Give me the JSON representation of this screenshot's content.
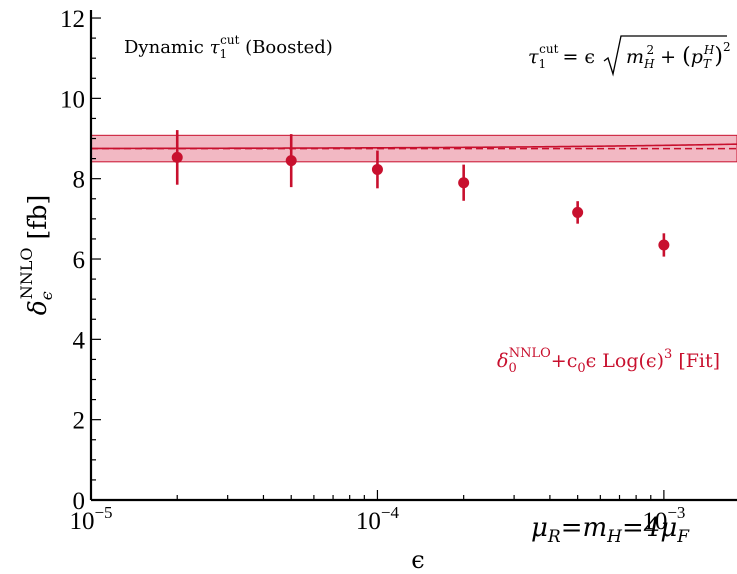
{
  "chart_data": {
    "type": "scatter",
    "title": "",
    "annotations": {
      "top_left_prefix": "Dynamic ",
      "top_left_tau": "τ",
      "top_left_tau_sub": "1",
      "top_left_tau_sup": "cut",
      "top_left_suffix": " (Boosted)",
      "formula_lhs_tau": "τ",
      "formula_lhs_sub": "1",
      "formula_lhs_sup": "cut",
      "formula_rhs_eps": "= ϵ",
      "formula_m": "m",
      "formula_m_sub": "H",
      "formula_m_sup": "2",
      "formula_plus": " + ",
      "formula_p": "p",
      "formula_p_sub": "T",
      "formula_p_sup": "H",
      "formula_outer_sup": "2",
      "fit_delta": "δ",
      "fit_delta_sub": "0",
      "fit_delta_sup": "NNLO",
      "fit_rest": "+c",
      "fit_c_sub": "0",
      "fit_tail": "ϵ Log(ϵ)",
      "fit_tail_sup": "3",
      "fit_bracket": " [Fit]",
      "scale_mu1": "μ",
      "scale_mu1_sub": "R",
      "scale_eq1": "=m",
      "scale_m_sub": "H",
      "scale_eq2": "=4μ",
      "scale_mu2_sub": "F"
    },
    "xlabel": "ϵ",
    "ylabel_delta": "δ",
    "ylabel_sub": "ϵ",
    "ylabel_sup": "NNLO",
    "ylabel_unit": " [fb]",
    "x_scale": "log",
    "xlim": [
      1e-05,
      0.0018
    ],
    "ylim": [
      0,
      12.2
    ],
    "x_ticks": [
      {
        "value": 1e-05,
        "base": "10",
        "exp": "−5"
      },
      {
        "value": 0.0001,
        "base": "10",
        "exp": "−4"
      },
      {
        "value": 0.001,
        "base": "10",
        "exp": "−3"
      }
    ],
    "y_ticks": [
      0,
      2,
      4,
      6,
      8,
      10,
      12
    ],
    "y_tick_labels": [
      "0",
      "2",
      "4",
      "6",
      "8",
      "10",
      "12"
    ],
    "series": [
      {
        "x": [
          2e-05,
          5e-05,
          0.0001,
          0.0002,
          0.0005,
          0.001
        ],
        "y": [
          8.53,
          8.45,
          8.23,
          7.9,
          7.16,
          6.35
        ],
        "yerr": [
          0.68,
          0.66,
          0.47,
          0.45,
          0.28,
          0.29
        ]
      }
    ],
    "band": {
      "center": 8.75,
      "low": 8.42,
      "high": 9.08
    },
    "fit_curve": {
      "d0": 8.75,
      "c0": -0.2424,
      "x_end": 0.0018
    },
    "colors": {
      "accent": "#c8102e",
      "band_fill": "#f2b8c3"
    },
    "grid": false,
    "legend": "none"
  }
}
